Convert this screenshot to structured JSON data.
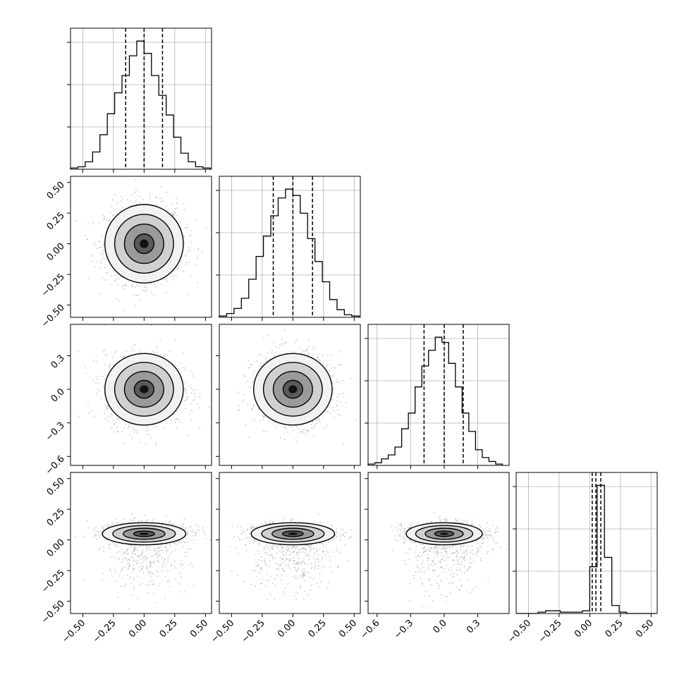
{
  "chart_data": {
    "type": "corner",
    "title": "",
    "colors": {
      "line": "#000000",
      "grid": "#b0b0b0",
      "scatter": "#808080",
      "frame": "#000000",
      "background": "#ffffff"
    },
    "params": [
      {
        "label": "",
        "range": [
          -0.6,
          0.55
        ],
        "ticks": [
          "−0.50",
          "−0.25",
          "0.00",
          "0.25",
          "0.50"
        ],
        "tick_values": [
          -0.5,
          -0.25,
          0,
          0.25,
          0.5
        ],
        "quantiles": [
          -0.15,
          0.0,
          0.15
        ]
      },
      {
        "label": "",
        "range": [
          -0.6,
          0.55
        ],
        "ticks": [
          "−0.50",
          "−0.25",
          "0.00",
          "0.25",
          "0.50"
        ],
        "tick_values": [
          -0.5,
          -0.25,
          0,
          0.25,
          0.5
        ],
        "quantiles": [
          -0.16,
          0.0,
          0.16
        ]
      },
      {
        "label": "",
        "range": [
          -0.68,
          0.58
        ],
        "ticks": [
          "−0.6",
          "−0.3",
          "0.0",
          "0.3"
        ],
        "tick_values": [
          -0.6,
          -0.3,
          0,
          0.3
        ],
        "quantiles": [
          -0.18,
          0.0,
          0.17
        ]
      },
      {
        "label": "",
        "range": [
          -0.6,
          0.55
        ],
        "ticks": [
          "−0.50",
          "−0.25",
          "0.00",
          "0.25",
          "0.50"
        ],
        "tick_values": [
          -0.5,
          -0.25,
          0,
          0.25,
          0.5
        ],
        "quantiles": [
          0.02,
          0.05,
          0.09
        ]
      }
    ],
    "histograms": [
      {
        "param": 0,
        "bin_edges": [
          -0.6,
          -0.54,
          -0.48,
          -0.42,
          -0.36,
          -0.3,
          -0.24,
          -0.18,
          -0.12,
          -0.06,
          0.0,
          0.06,
          0.12,
          0.18,
          0.24,
          0.3,
          0.36,
          0.42,
          0.48,
          0.54
        ],
        "counts": [
          1,
          2,
          6,
          14,
          28,
          45,
          62,
          76,
          92,
          104,
          94,
          76,
          60,
          44,
          26,
          13,
          6,
          2,
          1
        ]
      },
      {
        "param": 1,
        "bin_edges": [
          -0.6,
          -0.54,
          -0.48,
          -0.42,
          -0.36,
          -0.3,
          -0.24,
          -0.18,
          -0.12,
          -0.06,
          0.0,
          0.06,
          0.12,
          0.18,
          0.24,
          0.3,
          0.36,
          0.42,
          0.48,
          0.54
        ],
        "counts": [
          1,
          3,
          7,
          15,
          30,
          48,
          64,
          80,
          94,
          101,
          96,
          82,
          62,
          44,
          28,
          14,
          6,
          2,
          1
        ]
      },
      {
        "param": 2,
        "bin_edges": [
          -0.68,
          -0.62,
          -0.56,
          -0.5,
          -0.44,
          -0.38,
          -0.32,
          -0.26,
          -0.2,
          -0.14,
          -0.08,
          -0.02,
          0.04,
          0.1,
          0.16,
          0.22,
          0.28,
          0.34,
          0.4,
          0.46,
          0.52
        ],
        "counts": [
          1,
          2,
          5,
          8,
          14,
          28,
          40,
          60,
          76,
          88,
          98,
          94,
          78,
          60,
          40,
          26,
          12,
          6,
          3,
          1
        ]
      },
      {
        "param": 3,
        "bin_edges": [
          -0.6,
          -0.54,
          -0.48,
          -0.42,
          -0.36,
          -0.3,
          -0.24,
          -0.18,
          -0.12,
          -0.06,
          0.0,
          0.06,
          0.12,
          0.18,
          0.24,
          0.3,
          0.36,
          0.42,
          0.48,
          0.54
        ],
        "counts": [
          0,
          0,
          0,
          1,
          2,
          2,
          1,
          1,
          1,
          2,
          35,
          96,
          42,
          6,
          1,
          0,
          0,
          0,
          0
        ]
      }
    ],
    "contours": {
      "levels": [
        "0.5",
        "1.0",
        "1.5",
        "2.0"
      ],
      "pairs": [
        {
          "x_param": 0,
          "y_param": 1,
          "center": [
            0.0,
            0.0
          ],
          "spread": [
            0.16,
            0.16
          ]
        },
        {
          "x_param": 0,
          "y_param": 2,
          "center": [
            0.0,
            0.0
          ],
          "spread": [
            0.16,
            0.16
          ]
        },
        {
          "x_param": 1,
          "y_param": 2,
          "center": [
            0.0,
            0.0
          ],
          "spread": [
            0.16,
            0.16
          ]
        },
        {
          "x_param": 0,
          "y_param": 3,
          "center": [
            0.0,
            0.05
          ],
          "spread": [
            0.17,
            0.045
          ]
        },
        {
          "x_param": 1,
          "y_param": 3,
          "center": [
            0.0,
            0.05
          ],
          "spread": [
            0.17,
            0.045
          ]
        },
        {
          "x_param": 2,
          "y_param": 3,
          "center": [
            0.0,
            0.05
          ],
          "spread": [
            0.17,
            0.045
          ]
        }
      ]
    },
    "grid": true,
    "legend": "none"
  }
}
